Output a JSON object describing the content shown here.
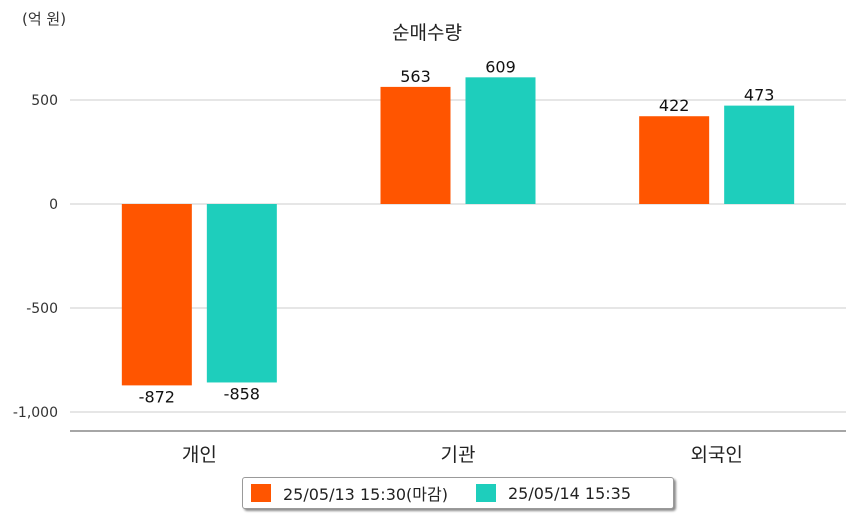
{
  "chart_data": {
    "type": "bar",
    "title": "순매수량",
    "unit_label": "(억 원)",
    "categories": [
      "개인",
      "기관",
      "외국인"
    ],
    "series": [
      {
        "name": "25/05/13 15:30(마감)",
        "color": "#FF5500",
        "values": [
          -872,
          563,
          422
        ]
      },
      {
        "name": "25/05/14 15:35",
        "color": "#1ECEBC",
        "values": [
          -858,
          609,
          473
        ]
      }
    ],
    "ylim": [
      -1000,
      500
    ],
    "yticks": [
      500,
      0,
      -500,
      -1000
    ],
    "ytick_labels": [
      "500",
      "0",
      "-500",
      "-1,000"
    ],
    "data_labels": [
      [
        "-872",
        "563",
        "422"
      ],
      [
        "-858",
        "609",
        "473"
      ]
    ],
    "grid": true,
    "legend_position": "bottom"
  }
}
